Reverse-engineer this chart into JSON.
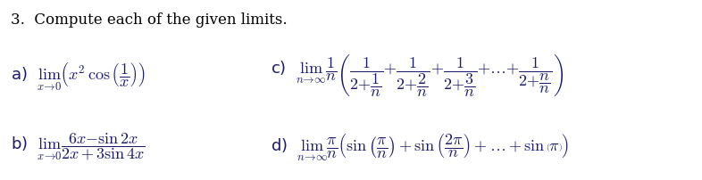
{
  "title": "3.  Compute each of the given limits.",
  "background_color": "#ffffff",
  "text_color": "#000000",
  "math_color": "#1a1a6e",
  "figsize": [
    7.86,
    2.02
  ],
  "dpi": 100,
  "title_fontsize": 12,
  "expr_fontsize": 13
}
